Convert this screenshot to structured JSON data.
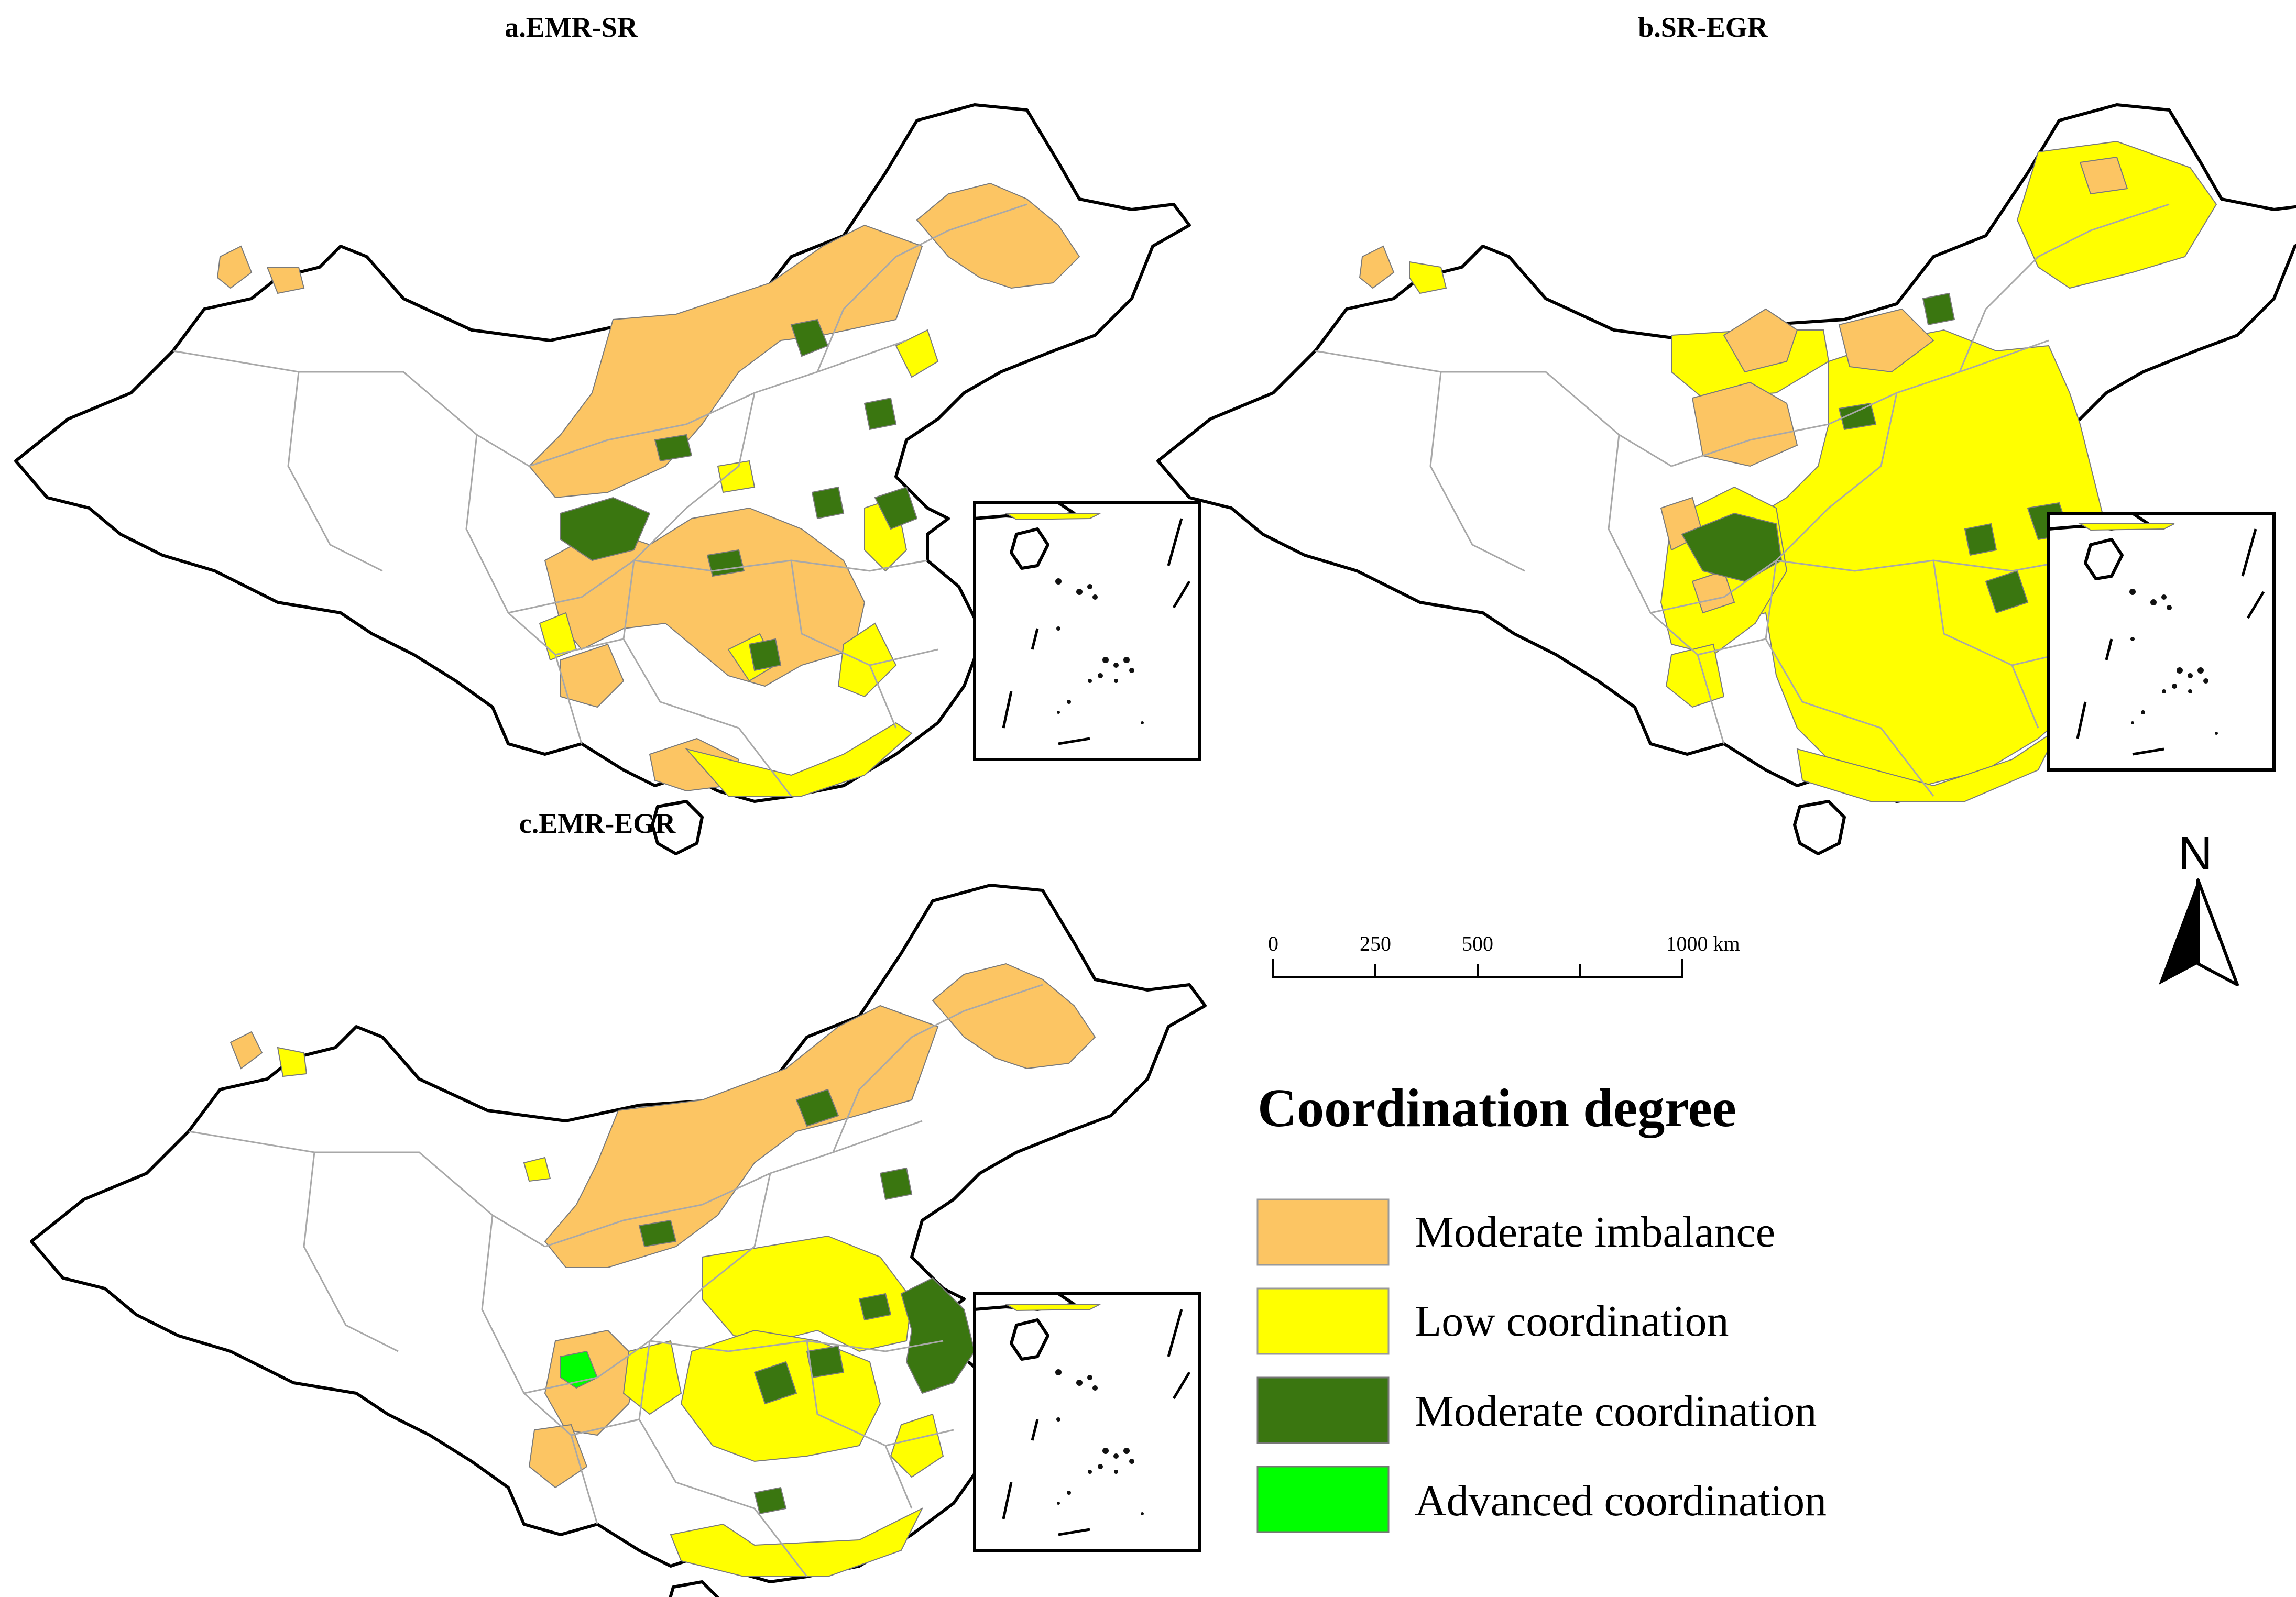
{
  "panels": [
    {
      "id": "a",
      "title": "a.EMR-SR"
    },
    {
      "id": "b",
      "title": "b.SR-EGR"
    },
    {
      "id": "c",
      "title": "c.EMR-EGR"
    }
  ],
  "scale_bar": {
    "ticks": [
      "0",
      "250",
      "500",
      "1000 km"
    ]
  },
  "north_arrow": {
    "label": "N"
  },
  "legend": {
    "title": "Coordination degree",
    "items": [
      {
        "label": "Moderate imbalance",
        "color": "#fcc563"
      },
      {
        "label": "Low coordination",
        "color": "#ffff00"
      },
      {
        "label": "Moderate coordination",
        "color": "#3a7610"
      },
      {
        "label": "Advanced coordination",
        "color": "#00ff00"
      }
    ]
  }
}
